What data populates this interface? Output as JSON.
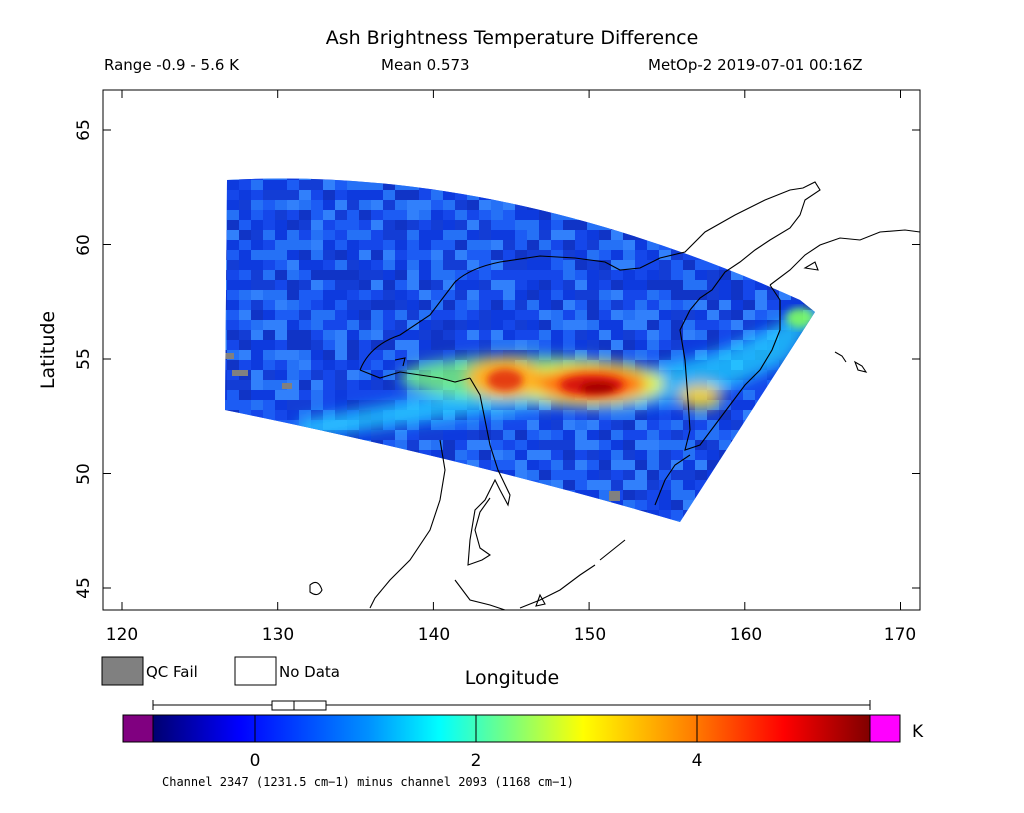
{
  "title": "Ash Brightness Temperature Difference",
  "header": {
    "range": "Range -0.9 - 5.6 K",
    "mean": "Mean 0.573",
    "satellite": "MetOp-2 2019-07-01 00:16Z"
  },
  "map": {
    "xlabel": "Longitude",
    "ylabel": "Latitude",
    "lon_range": [
      118.5,
      171.5
    ],
    "lat_range": [
      43.9,
      67.8
    ],
    "x_ticks": [
      "120",
      "130",
      "140",
      "150",
      "160",
      "170"
    ],
    "y_ticks": [
      "45",
      "50",
      "55",
      "60",
      "65"
    ],
    "hotspot_peak_lon": 151,
    "hotspot_peak_lat": 53.6
  },
  "legend": {
    "qc_fail": "QC Fail",
    "no_data": "No Data",
    "qc_fail_color": "#808080",
    "no_data_color": "#ffffff"
  },
  "colorbar": {
    "unit": "K",
    "min": -0.9,
    "max": 5.6,
    "ticks": [
      "0",
      "2",
      "4"
    ],
    "under_color": "#800080",
    "over_color": "#ff00ff",
    "caption": "Channel 2347 (1231.5 cm−1) minus channel 2093 (1168 cm−1)"
  }
}
